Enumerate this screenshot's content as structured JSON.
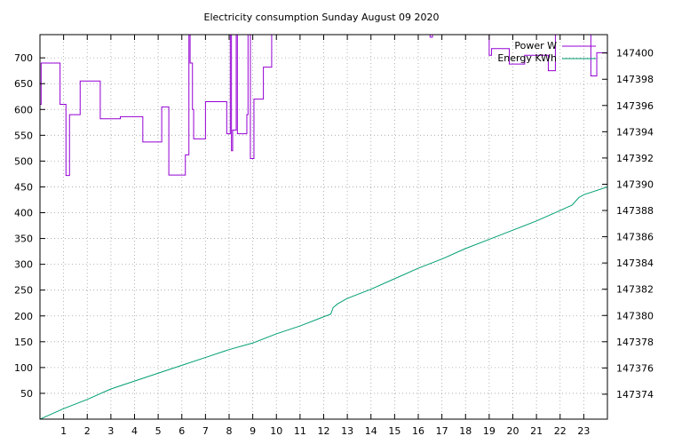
{
  "chart_data": {
    "type": "line",
    "title": "Electricity consumption Sunday August 09 2020",
    "grid": true,
    "legend_position": "top-right",
    "x": {
      "range": [
        0,
        24
      ],
      "ticks": [
        1,
        2,
        3,
        4,
        5,
        6,
        7,
        8,
        9,
        10,
        11,
        12,
        13,
        14,
        15,
        16,
        17,
        18,
        19,
        20,
        21,
        22,
        23
      ]
    },
    "y_left": {
      "range": [
        0,
        745
      ],
      "ticks": [
        50,
        100,
        150,
        200,
        250,
        300,
        350,
        400,
        450,
        500,
        550,
        600,
        650,
        700
      ]
    },
    "y_right": {
      "range": [
        147372.1,
        147401.4
      ],
      "ticks": [
        147374,
        147376,
        147378,
        147380,
        147382,
        147384,
        147386,
        147388,
        147390,
        147392,
        147394,
        147396,
        147398,
        147400
      ]
    },
    "series": [
      {
        "name": "Power W",
        "axis": "left",
        "color": "#9400d3",
        "style": "steps",
        "points": [
          [
            0.0,
            610
          ],
          [
            0.05,
            690
          ],
          [
            0.85,
            610
          ],
          [
            1.1,
            472
          ],
          [
            1.25,
            590
          ],
          [
            1.7,
            655
          ],
          [
            2.55,
            582
          ],
          [
            3.4,
            586
          ],
          [
            4.35,
            537
          ],
          [
            5.15,
            605
          ],
          [
            5.45,
            473
          ],
          [
            6.15,
            512
          ],
          [
            6.3,
            760
          ],
          [
            6.35,
            690
          ],
          [
            6.45,
            600
          ],
          [
            6.5,
            543
          ],
          [
            7.0,
            615
          ],
          [
            7.9,
            553
          ],
          [
            8.05,
            760
          ],
          [
            8.1,
            520
          ],
          [
            8.15,
            560
          ],
          [
            8.3,
            760
          ],
          [
            8.35,
            553
          ],
          [
            8.75,
            590
          ],
          [
            8.8,
            760
          ],
          [
            8.9,
            505
          ],
          [
            9.05,
            620
          ],
          [
            9.45,
            682
          ],
          [
            9.8,
            760
          ],
          [
            16.5,
            740
          ],
          [
            16.6,
            760
          ],
          [
            19.0,
            705
          ],
          [
            19.1,
            718
          ],
          [
            19.85,
            688
          ],
          [
            20.5,
            705
          ],
          [
            21.5,
            675
          ],
          [
            21.8,
            760
          ],
          [
            23.3,
            665
          ],
          [
            23.55,
            710
          ],
          [
            24.0,
            710
          ]
        ]
      },
      {
        "name": "Energy KWh",
        "axis": "right",
        "color": "#009e73",
        "style": "line",
        "points": [
          [
            0,
            147372.1
          ],
          [
            1,
            147372.9
          ],
          [
            2,
            147373.6
          ],
          [
            3,
            147374.4
          ],
          [
            4,
            147375.0
          ],
          [
            5,
            147375.6
          ],
          [
            6,
            147376.2
          ],
          [
            7,
            147376.8
          ],
          [
            8,
            147377.4
          ],
          [
            9,
            147377.9
          ],
          [
            10,
            147378.6
          ],
          [
            11,
            147379.2
          ],
          [
            12,
            147379.9
          ],
          [
            12.3,
            147380.1
          ],
          [
            12.4,
            147380.6
          ],
          [
            12.6,
            147380.9
          ],
          [
            13,
            147381.3
          ],
          [
            14,
            147382.0
          ],
          [
            15,
            147382.8
          ],
          [
            16,
            147383.6
          ],
          [
            17,
            147384.3
          ],
          [
            18,
            147385.1
          ],
          [
            19,
            147385.8
          ],
          [
            20,
            147386.5
          ],
          [
            21,
            147387.2
          ],
          [
            22,
            147388.0
          ],
          [
            22.5,
            147388.4
          ],
          [
            22.8,
            147389.0
          ],
          [
            23,
            147389.2
          ],
          [
            24,
            147389.8
          ]
        ]
      }
    ]
  }
}
